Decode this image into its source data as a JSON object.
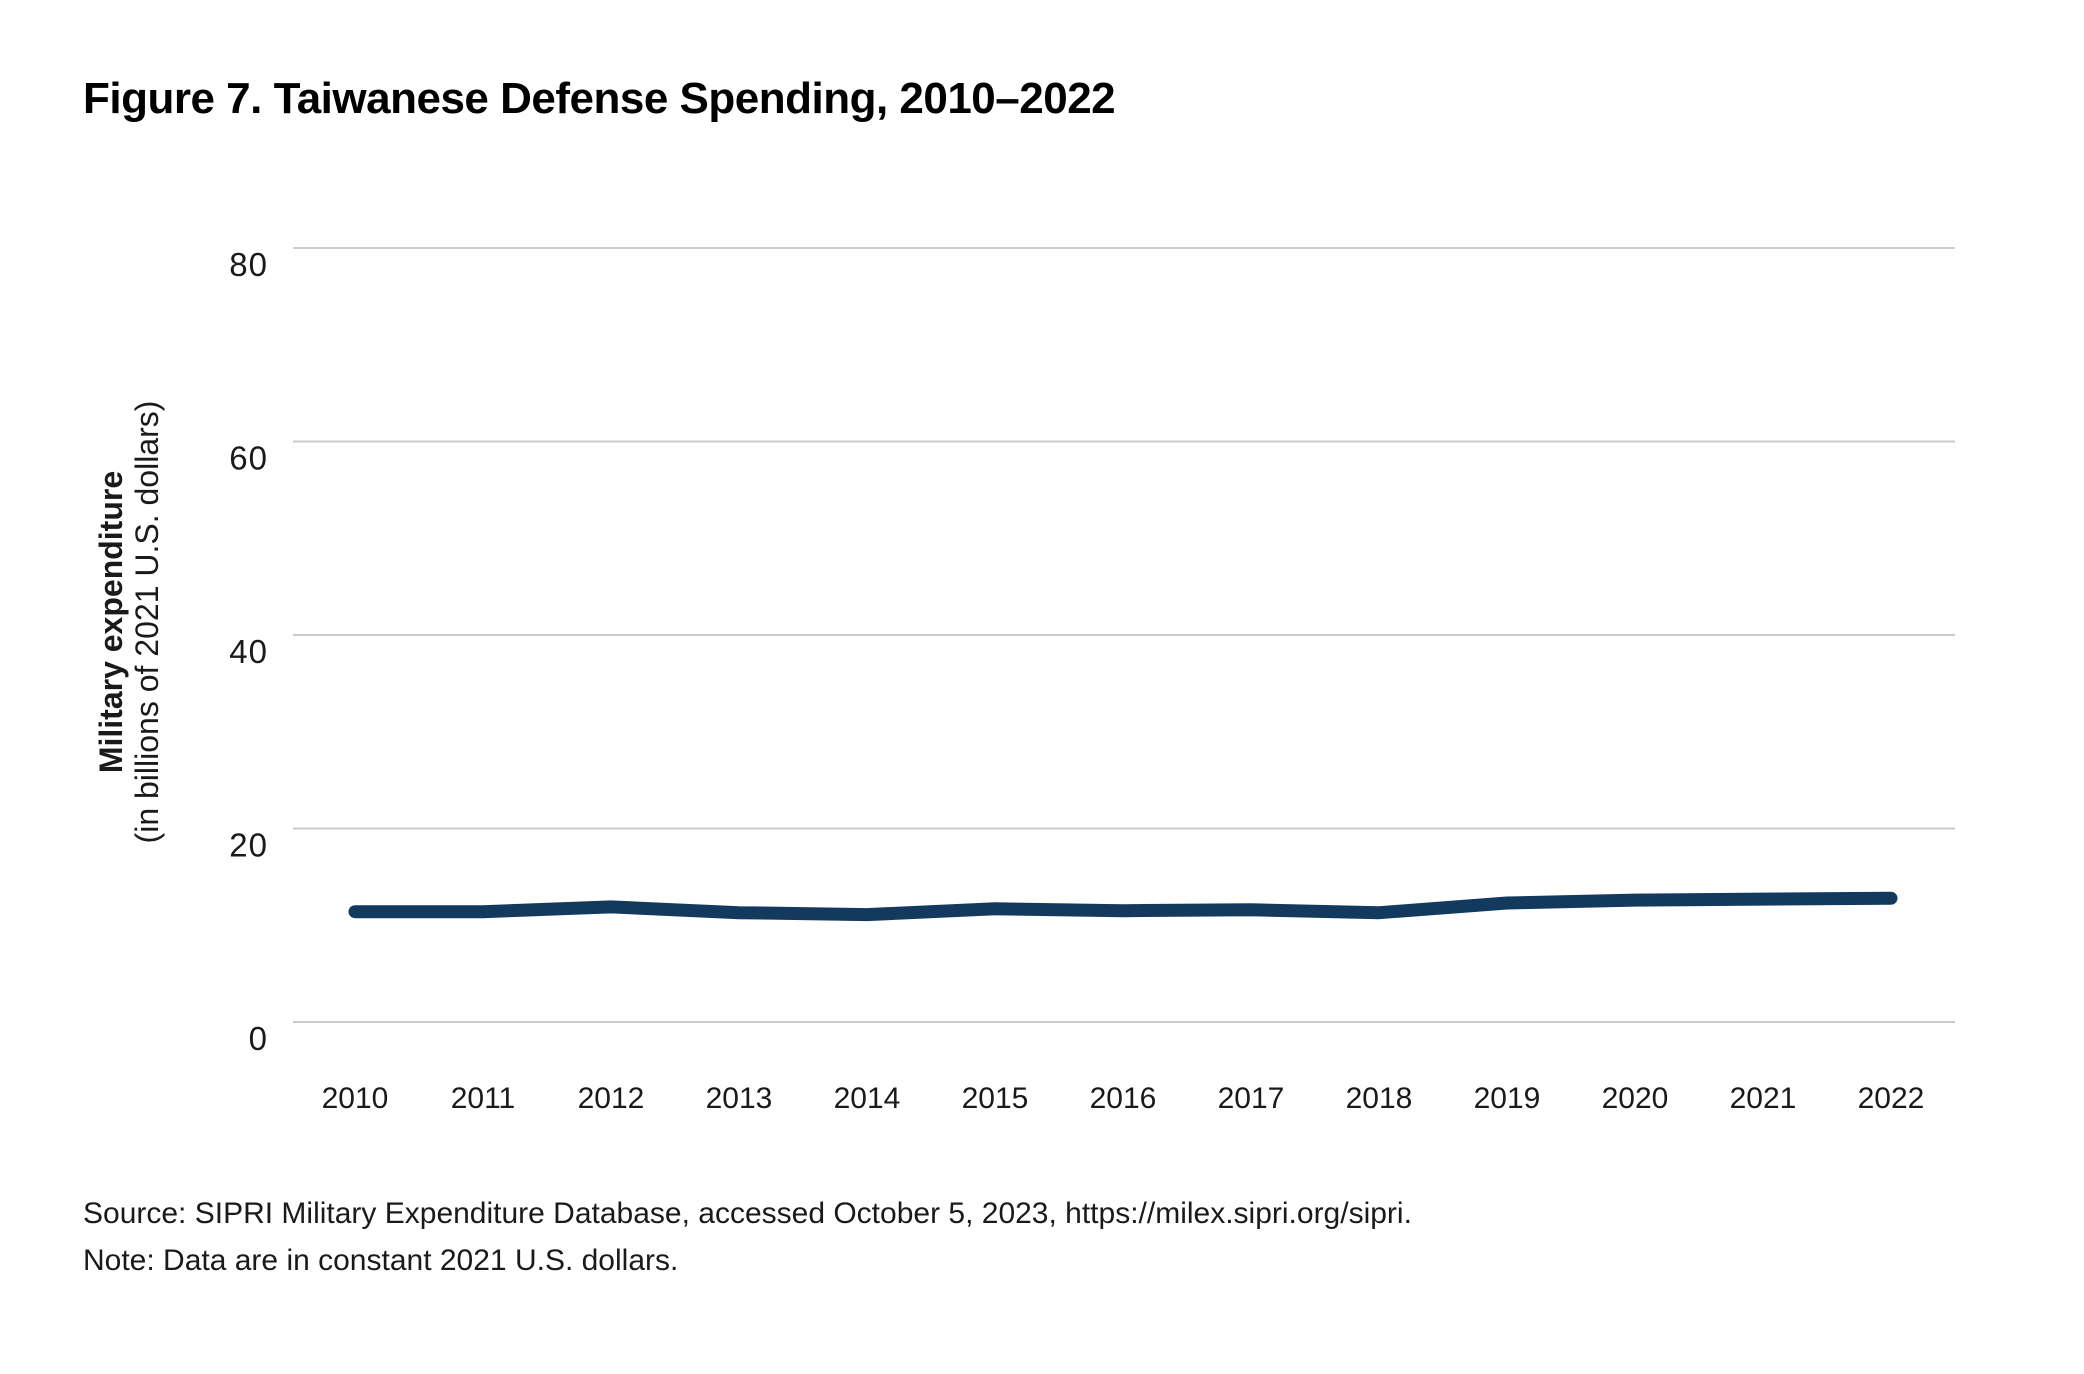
{
  "chart_data": {
    "type": "line",
    "title": "Figure 7. Taiwanese Defense Spending, 2010–2022",
    "categories": [
      "2010",
      "2011",
      "2012",
      "2013",
      "2014",
      "2015",
      "2016",
      "2017",
      "2018",
      "2019",
      "2020",
      "2021",
      "2022"
    ],
    "values": [
      11.4,
      11.4,
      11.9,
      11.3,
      11.1,
      11.7,
      11.5,
      11.6,
      11.3,
      12.3,
      12.6,
      12.7,
      12.8
    ],
    "series_name": "Taiwanese military expenditure",
    "xlabel": "",
    "ylabel": "Military expenditure",
    "ylabel_sub": "(in billions of 2021 U.S. dollars)",
    "yticks": [
      0,
      20,
      40,
      60,
      80
    ],
    "ylim": [
      0,
      80
    ],
    "grid": "horizontal-only",
    "legend": "none",
    "line_color": "#133a5e",
    "grid_color": "#cccccc",
    "text_color": "#1a1a1a"
  },
  "footer": {
    "source": "Source: SIPRI Military Expenditure Database, accessed October 5, 2023, https://milex.sipri.org/sipri.",
    "note": "Note: Data are in constant 2021 U.S. dollars."
  }
}
